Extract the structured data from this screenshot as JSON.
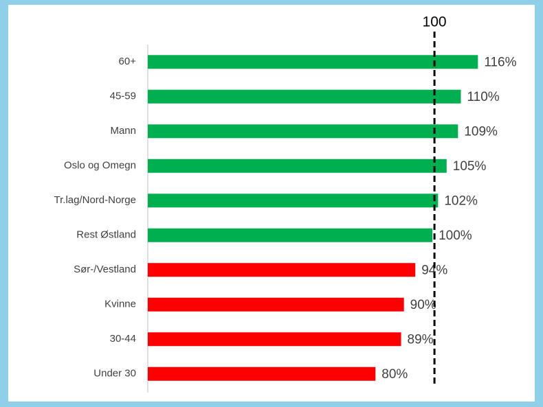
{
  "chart_data": {
    "type": "bar",
    "orientation": "horizontal",
    "categories": [
      "60+",
      "45-59",
      "Mann",
      "Oslo og Omegn",
      "Tr.lag/Nord-Norge",
      "Rest Østland",
      "Sør-/Vestland",
      "Kvinne",
      "30-44",
      "Under 30"
    ],
    "values": [
      116,
      110,
      109,
      105,
      102,
      100,
      94,
      90,
      89,
      80
    ],
    "value_labels": [
      "116%",
      "110%",
      "109%",
      "105%",
      "102%",
      "100%",
      "94%",
      "90%",
      "89%",
      "80%"
    ],
    "colors": [
      "#00b050",
      "#00b050",
      "#00b050",
      "#00b050",
      "#00b050",
      "#00b050",
      "#ff0000",
      "#ff0000",
      "#ff0000",
      "#ff0000"
    ],
    "xlim": [
      0,
      135
    ],
    "reference_line": 100
  }
}
